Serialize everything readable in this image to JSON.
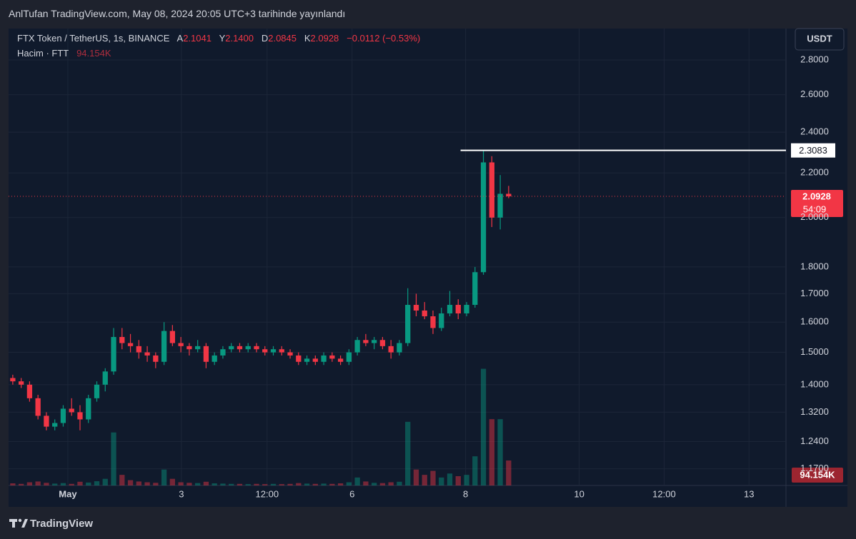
{
  "chart_data": {
    "type": "candlestick",
    "title": "AnlTufan TradingView.com, May 08, 2024 20:05 UTC+3 tarihinde yayınlandı",
    "symbol": "FTX Token / TetherUS, 1s, BINANCE",
    "ohlc_legend": {
      "labels": [
        "A",
        "Y",
        "D",
        "K"
      ],
      "values": [
        "2.1041",
        "2.1400",
        "2.0845",
        "2.0928"
      ],
      "change": "−0.0112 (−0.53%)"
    },
    "volume_legend": {
      "label": "Hacim · FTT",
      "value": "94.154K"
    },
    "currency": "USDT",
    "countdown": "54:09",
    "brand": "TradingView",
    "up_color": "#089981",
    "down_color": "#f23645",
    "log_scale": true,
    "grid": true,
    "ylim": [
      1.129,
      2.994
    ],
    "yticks": [
      {
        "value": 2.8,
        "label": "2.8000"
      },
      {
        "value": 2.6,
        "label": "2.6000"
      },
      {
        "value": 2.4,
        "label": "2.4000"
      },
      {
        "value": 2.2,
        "label": "2.2000"
      },
      {
        "value": 2.0,
        "label": "2.0000"
      },
      {
        "value": 1.8,
        "label": "1.8000"
      },
      {
        "value": 1.7,
        "label": "1.7000"
      },
      {
        "value": 1.6,
        "label": "1.6000"
      },
      {
        "value": 1.5,
        "label": "1.5000"
      },
      {
        "value": 1.4,
        "label": "1.4000"
      },
      {
        "value": 1.32,
        "label": "1.3200"
      },
      {
        "value": 1.24,
        "label": "1.2400"
      },
      {
        "value": 1.17,
        "label": "1.1700"
      }
    ],
    "xlim": [
      0,
      92.5
    ],
    "xticks": [
      {
        "value": 7.05,
        "label": "May"
      },
      {
        "value": 20.56,
        "label": "3"
      },
      {
        "value": 30.76,
        "label": "12:00"
      },
      {
        "value": 40.87,
        "label": "6"
      },
      {
        "value": 54.38,
        "label": "8"
      },
      {
        "value": 67.9,
        "label": "10"
      },
      {
        "value": 78.0,
        "label": "12:00"
      },
      {
        "value": 88.1,
        "label": "13"
      }
    ],
    "volume_lim": [
      0,
      700000
    ],
    "open": [
      1.42,
      1.41,
      1.4,
      1.36,
      1.31,
      1.28,
      1.29,
      1.33,
      1.32,
      1.3,
      1.36,
      1.4,
      1.44,
      1.55,
      1.53,
      1.52,
      1.5,
      1.49,
      1.47,
      1.57,
      1.53,
      1.52,
      1.51,
      1.52,
      1.47,
      1.49,
      1.51,
      1.52,
      1.51,
      1.52,
      1.51,
      1.5,
      1.51,
      1.5,
      1.49,
      1.47,
      1.48,
      1.47,
      1.49,
      1.48,
      1.47,
      1.5,
      1.54,
      1.53,
      1.54,
      1.52,
      1.5,
      1.53,
      1.66,
      1.64,
      1.62,
      1.58,
      1.63,
      1.66,
      1.63,
      1.66,
      1.78,
      2.25,
      2.0,
      2.1041
    ],
    "high": [
      1.43,
      1.42,
      1.41,
      1.37,
      1.32,
      1.3,
      1.34,
      1.36,
      1.34,
      1.37,
      1.41,
      1.45,
      1.58,
      1.58,
      1.56,
      1.54,
      1.52,
      1.5,
      1.6,
      1.59,
      1.55,
      1.53,
      1.54,
      1.53,
      1.5,
      1.52,
      1.53,
      1.53,
      1.53,
      1.53,
      1.52,
      1.52,
      1.52,
      1.51,
      1.5,
      1.49,
      1.49,
      1.5,
      1.5,
      1.49,
      1.51,
      1.55,
      1.56,
      1.55,
      1.55,
      1.54,
      1.54,
      1.72,
      1.7,
      1.67,
      1.64,
      1.65,
      1.71,
      1.68,
      1.67,
      1.8,
      2.3083,
      2.28,
      2.19,
      2.14
    ],
    "low": [
      1.4,
      1.39,
      1.35,
      1.3,
      1.27,
      1.27,
      1.28,
      1.31,
      1.27,
      1.29,
      1.35,
      1.38,
      1.43,
      1.51,
      1.5,
      1.48,
      1.47,
      1.45,
      1.46,
      1.52,
      1.5,
      1.49,
      1.5,
      1.45,
      1.46,
      1.48,
      1.5,
      1.5,
      1.5,
      1.5,
      1.49,
      1.49,
      1.49,
      1.48,
      1.46,
      1.46,
      1.46,
      1.46,
      1.47,
      1.46,
      1.46,
      1.49,
      1.52,
      1.51,
      1.51,
      1.48,
      1.49,
      1.52,
      1.62,
      1.61,
      1.56,
      1.57,
      1.62,
      1.61,
      1.62,
      1.65,
      1.77,
      1.96,
      1.95,
      2.0845
    ],
    "close": [
      1.41,
      1.4,
      1.36,
      1.31,
      1.28,
      1.29,
      1.33,
      1.32,
      1.3,
      1.36,
      1.4,
      1.44,
      1.55,
      1.53,
      1.52,
      1.5,
      1.49,
      1.47,
      1.57,
      1.53,
      1.52,
      1.51,
      1.52,
      1.47,
      1.49,
      1.51,
      1.52,
      1.51,
      1.52,
      1.51,
      1.5,
      1.51,
      1.5,
      1.49,
      1.47,
      1.48,
      1.47,
      1.49,
      1.48,
      1.47,
      1.5,
      1.54,
      1.53,
      1.54,
      1.52,
      1.5,
      1.53,
      1.66,
      1.64,
      1.62,
      1.58,
      1.63,
      1.66,
      1.63,
      1.66,
      1.78,
      2.25,
      2.0,
      2.1041,
      2.0928
    ],
    "volume": [
      8000,
      6000,
      12000,
      15000,
      10000,
      7000,
      9000,
      6000,
      14000,
      11000,
      16000,
      25000,
      200000,
      40000,
      20000,
      15000,
      12000,
      10000,
      60000,
      25000,
      12000,
      10000,
      9000,
      14000,
      8000,
      7000,
      6000,
      6000,
      5000,
      6000,
      5000,
      6000,
      5000,
      6000,
      9000,
      7000,
      6000,
      7000,
      6000,
      8000,
      12000,
      30000,
      15000,
      10000,
      9000,
      12000,
      14000,
      240000,
      60000,
      40000,
      55000,
      30000,
      45000,
      35000,
      40000,
      110000,
      440000,
      250000,
      250000,
      94154
    ]
  }
}
